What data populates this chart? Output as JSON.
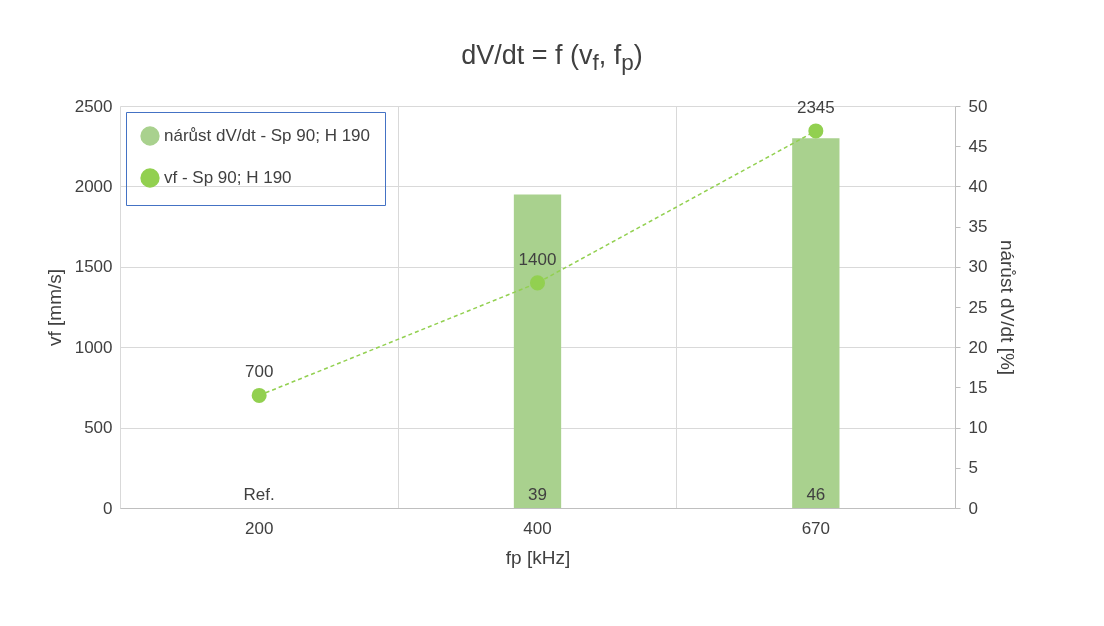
{
  "chart_data": {
    "type": "bar",
    "title": "dV/dt = f (v$_{f}$, f$_{p}$)",
    "xlabel": "fp [kHz]",
    "ylabel": "vf [mm/s]",
    "y2label": "nárůst dV/dt [%]",
    "categories": [
      "200",
      "400",
      "670"
    ],
    "series": [
      {
        "name": "nárůst dV/dt - Sp 90; H 190",
        "axis": "y2",
        "color": "#a9d18e",
        "values": [
          0,
          39,
          46
        ],
        "value_labels": [
          "Ref.",
          "39",
          "46"
        ]
      },
      {
        "name": "vf - Sp 90; H 190",
        "type": "line",
        "color": "#92d050",
        "values": [
          700,
          1400,
          2345
        ],
        "value_labels": [
          "700",
          "1400",
          "2345"
        ]
      }
    ],
    "ylim": [
      0,
      2500
    ],
    "yticks": [
      0,
      500,
      1000,
      1500,
      2000,
      2500
    ],
    "y2lim": [
      0,
      50
    ],
    "y2ticks": [
      0,
      5,
      10,
      15,
      20,
      25,
      30,
      35,
      40,
      45,
      50
    ],
    "grid": true,
    "legend": "top left",
    "marker": "circle",
    "line_style": "dashed"
  }
}
